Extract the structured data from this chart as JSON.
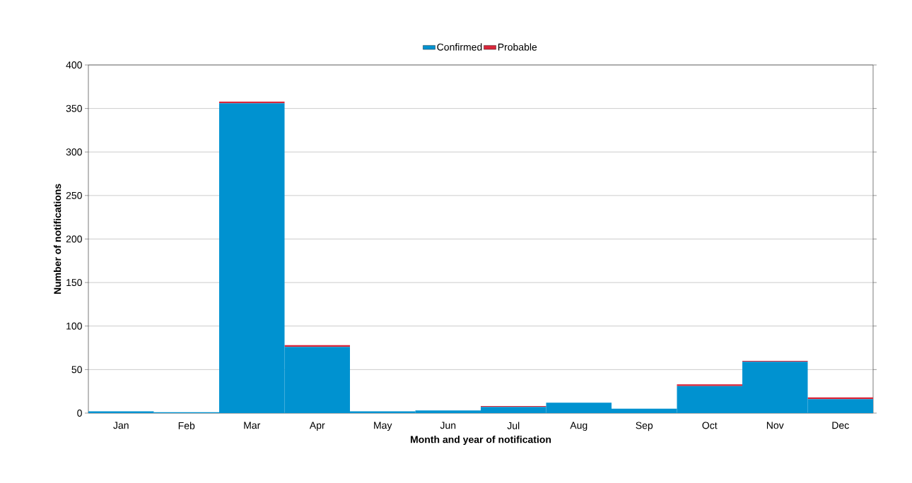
{
  "chart_data": {
    "type": "bar",
    "stacked": true,
    "xlabel": "Month and year of notification",
    "ylabel": "Number of notifications",
    "categories": [
      "Jan",
      "Feb",
      "Mar",
      "Apr",
      "May",
      "Jun",
      "Jul",
      "Aug",
      "Sep",
      "Oct",
      "Nov",
      "Dec"
    ],
    "series": [
      {
        "name": "Confirmed",
        "color": "#0092d0",
        "values": [
          2,
          1,
          356,
          76,
          2,
          3,
          7,
          12,
          5,
          31,
          59,
          16
        ]
      },
      {
        "name": "Probable",
        "color": "#d9263a",
        "values": [
          0,
          0,
          2,
          2,
          0,
          0,
          1,
          0,
          0,
          2,
          1,
          2
        ]
      }
    ],
    "ylim": [
      0,
      400
    ],
    "yticks": [
      0,
      50,
      100,
      150,
      200,
      250,
      300,
      350,
      400
    ],
    "grid": "y",
    "legend": "top"
  }
}
